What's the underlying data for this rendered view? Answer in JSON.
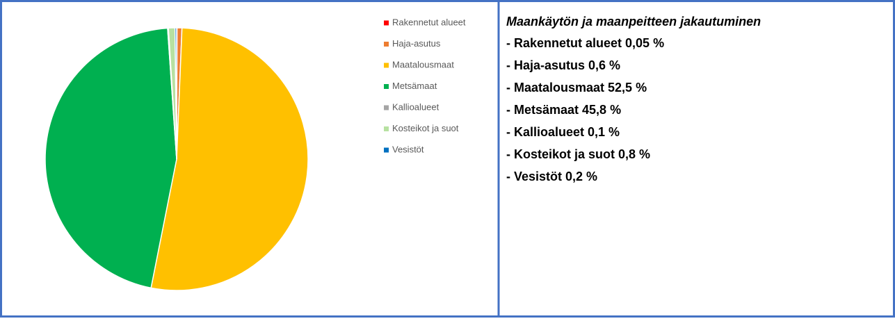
{
  "chart_data": {
    "type": "pie",
    "categories": [
      "Rakennetut alueet",
      "Haja-asutus",
      "Maatalousmaat",
      "Metsämaat",
      "Kallioalueet",
      "Kosteikot ja suot",
      "Vesistöt"
    ],
    "values": [
      0.05,
      0.6,
      52.5,
      45.8,
      0.1,
      0.8,
      0.2
    ],
    "colors": [
      "#ff0000",
      "#ed7d31",
      "#ffc000",
      "#00b050",
      "#a5a5a5",
      "#b7e1a1",
      "#0070c0"
    ],
    "legend": "right"
  },
  "text_panel": {
    "title": "Maankäytön ja maanpeitteen jakautuminen",
    "items": [
      "- Rakennetut alueet 0,05 %",
      "- Haja-asutus 0,6 %",
      "- Maatalousmaat 52,5 %",
      "- Metsämaat 45,8 %",
      "- Kallioalueet 0,1 %",
      "- Kosteikot ja suot 0,8 %",
      "- Vesistöt 0,2 %"
    ]
  }
}
